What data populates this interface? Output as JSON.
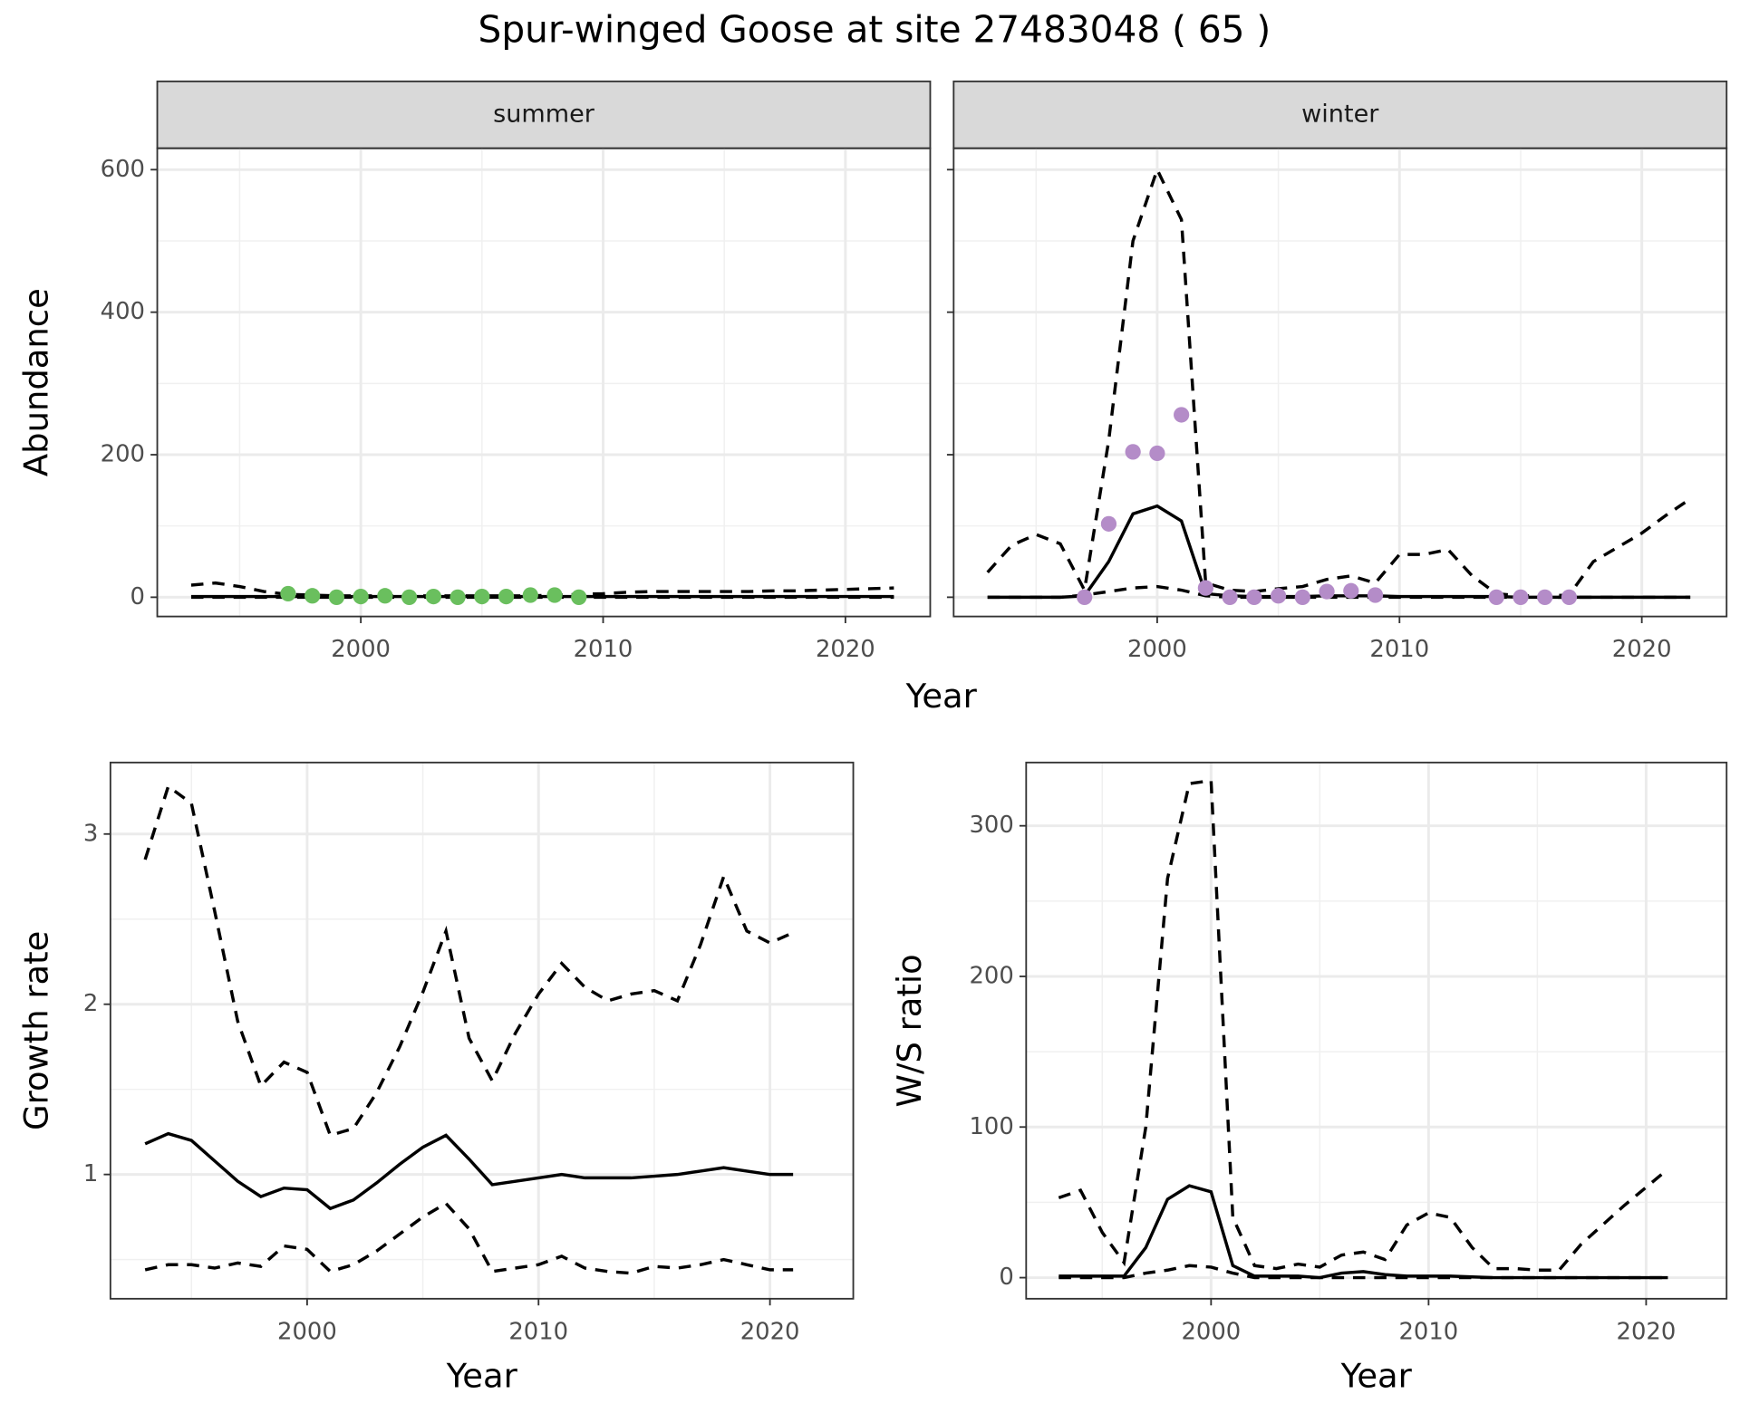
{
  "title": "Spur-winged Goose at site 27483048 ( 65 )",
  "xlabel": "Year",
  "chart_data": [
    {
      "type": "line",
      "facet": "summer",
      "ylabel": "Abundance",
      "show_yticklabels": true,
      "x": [
        1993,
        1994,
        1995,
        1996,
        1997,
        1998,
        1999,
        2000,
        2001,
        2002,
        2003,
        2004,
        2005,
        2006,
        2007,
        2008,
        2009,
        2010,
        2011,
        2012,
        2013,
        2014,
        2015,
        2016,
        2017,
        2018,
        2019,
        2020,
        2021,
        2022
      ],
      "xlim": [
        1991.6,
        2023.5
      ],
      "xticks": [
        2000,
        2010,
        2020
      ],
      "ylim": [
        -27,
        630
      ],
      "yticks": [
        0,
        200,
        400,
        600
      ],
      "grid": true,
      "series": [
        {
          "color": "#000000",
          "dash": "dashed",
          "values": [
            17,
            20,
            15,
            8,
            4,
            3,
            2,
            2,
            2,
            2,
            2,
            2,
            2,
            2,
            2,
            3,
            4,
            5,
            7,
            8,
            8,
            8,
            8,
            8,
            9,
            9,
            10,
            11,
            12,
            13
          ]
        },
        {
          "color": "#000000",
          "dash": "solid",
          "values": [
            1,
            1,
            1,
            1,
            1,
            1,
            1,
            1,
            1,
            1,
            1,
            1,
            1,
            1,
            1,
            1,
            1,
            1,
            1,
            1,
            1,
            1,
            1,
            1,
            1,
            1,
            1,
            1,
            1,
            1
          ]
        },
        {
          "color": "#000000",
          "dash": "dashed",
          "values": [
            0,
            0,
            0,
            0,
            0,
            0,
            0,
            0,
            0,
            0,
            0,
            0,
            0,
            0,
            0,
            0,
            0,
            0,
            0,
            0,
            0,
            0,
            0,
            0,
            0,
            0,
            0,
            0,
            0,
            0
          ]
        },
        {
          "color": "#6abf5e",
          "style": "points",
          "x": [
            1997,
            1998,
            1999,
            2000,
            2001,
            2002,
            2003,
            2004,
            2005,
            2006,
            2007,
            2008,
            2009
          ],
          "values": [
            5,
            2,
            0,
            1,
            2,
            0,
            1,
            0,
            1,
            1,
            3,
            3,
            0
          ]
        }
      ]
    },
    {
      "type": "line",
      "facet": "winter",
      "show_yticklabels": false,
      "x": [
        1993,
        1994,
        1995,
        1996,
        1997,
        1998,
        1999,
        2000,
        2001,
        2002,
        2003,
        2004,
        2005,
        2006,
        2007,
        2008,
        2009,
        2010,
        2011,
        2012,
        2013,
        2014,
        2015,
        2016,
        2017,
        2018,
        2019,
        2020,
        2021,
        2022
      ],
      "xlim": [
        1991.6,
        2023.5
      ],
      "xticks": [
        2000,
        2010,
        2020
      ],
      "ylim": [
        -27,
        630
      ],
      "yticks": [
        0,
        200,
        400,
        600
      ],
      "grid": true,
      "series": [
        {
          "color": "#000000",
          "dash": "dashed",
          "values": [
            35,
            73,
            88,
            75,
            10,
            220,
            500,
            600,
            530,
            20,
            10,
            8,
            12,
            15,
            25,
            30,
            20,
            60,
            60,
            67,
            30,
            5,
            2,
            2,
            3,
            50,
            70,
            90,
            115,
            138
          ]
        },
        {
          "color": "#000000",
          "dash": "solid",
          "values": [
            0,
            0,
            0,
            0,
            2,
            50,
            117,
            128,
            107,
            5,
            2,
            1,
            1,
            1,
            2,
            2,
            2,
            1,
            1,
            1,
            1,
            1,
            0,
            0,
            0,
            0,
            0,
            0,
            0,
            0
          ]
        },
        {
          "color": "#000000",
          "dash": "dashed",
          "values": [
            0,
            0,
            0,
            0,
            3,
            8,
            13,
            15,
            10,
            2,
            0,
            0,
            0,
            0,
            0,
            0,
            0,
            0,
            0,
            0,
            0,
            0,
            0,
            0,
            0,
            0,
            0,
            0,
            0,
            0
          ]
        },
        {
          "color": "#b48cc8",
          "style": "points",
          "x": [
            1997,
            1998,
            1999,
            2000,
            2001,
            2002,
            2003,
            2004,
            2005,
            2006,
            2007,
            2008,
            2009,
            2014,
            2015,
            2016,
            2017
          ],
          "values": [
            0,
            103,
            204,
            202,
            256,
            13,
            0,
            0,
            2,
            0,
            8,
            9,
            3,
            0,
            0,
            0,
            0
          ]
        }
      ]
    },
    {
      "type": "line",
      "ylabel": "Growth rate",
      "xlabel": "Year",
      "show_yticklabels": true,
      "x": [
        1993,
        1994,
        1995,
        1996,
        1997,
        1998,
        1999,
        2000,
        2001,
        2002,
        2003,
        2004,
        2005,
        2006,
        2007,
        2008,
        2009,
        2010,
        2011,
        2012,
        2013,
        2014,
        2015,
        2016,
        2017,
        2018,
        2019,
        2020,
        2021
      ],
      "xlim": [
        1991.5,
        2023.6
      ],
      "xticks": [
        2000,
        2010,
        2020
      ],
      "ylim": [
        0.27,
        3.42
      ],
      "yticks": [
        1,
        2,
        3
      ],
      "grid": true,
      "series": [
        {
          "color": "#000000",
          "dash": "dashed",
          "values": [
            2.85,
            3.28,
            3.18,
            2.55,
            1.9,
            1.52,
            1.66,
            1.6,
            1.23,
            1.27,
            1.48,
            1.75,
            2.07,
            2.43,
            1.8,
            1.55,
            1.83,
            2.06,
            2.24,
            2.1,
            2.02,
            2.06,
            2.08,
            2.02,
            2.35,
            2.75,
            2.43,
            2.36,
            2.42
          ]
        },
        {
          "color": "#000000",
          "dash": "solid",
          "values": [
            1.18,
            1.24,
            1.2,
            1.08,
            0.96,
            0.87,
            0.92,
            0.91,
            0.8,
            0.85,
            0.95,
            1.06,
            1.16,
            1.23,
            1.09,
            0.94,
            0.96,
            0.98,
            1.0,
            0.98,
            0.98,
            0.98,
            0.99,
            1.0,
            1.02,
            1.04,
            1.02,
            1.0,
            1.0
          ]
        },
        {
          "color": "#000000",
          "dash": "dashed",
          "values": [
            0.44,
            0.47,
            0.47,
            0.45,
            0.48,
            0.46,
            0.58,
            0.56,
            0.43,
            0.47,
            0.55,
            0.65,
            0.75,
            0.83,
            0.68,
            0.43,
            0.45,
            0.47,
            0.52,
            0.45,
            0.43,
            0.42,
            0.46,
            0.45,
            0.47,
            0.5,
            0.47,
            0.44,
            0.44
          ]
        }
      ]
    },
    {
      "type": "line",
      "ylabel": "W/S ratio",
      "xlabel": "Year",
      "show_yticklabels": true,
      "x": [
        1993,
        1994,
        1995,
        1996,
        1997,
        1998,
        1999,
        2000,
        2001,
        2002,
        2003,
        2004,
        2005,
        2006,
        2007,
        2008,
        2009,
        2010,
        2011,
        2012,
        2013,
        2014,
        2015,
        2016,
        2017,
        2018,
        2019,
        2020,
        2021
      ],
      "xlim": [
        1991.5,
        2023.7
      ],
      "xticks": [
        2000,
        2010,
        2020
      ],
      "ylim": [
        -14,
        342
      ],
      "yticks": [
        0,
        100,
        200,
        300
      ],
      "grid": true,
      "series": [
        {
          "color": "#000000",
          "dash": "dashed",
          "values": [
            53,
            58,
            30,
            10,
            100,
            265,
            328,
            330,
            40,
            8,
            6,
            9,
            7,
            15,
            17,
            12,
            35,
            43,
            40,
            20,
            6,
            6,
            5,
            5,
            22,
            35,
            48,
            60,
            72
          ]
        },
        {
          "color": "#000000",
          "dash": "solid",
          "values": [
            1,
            1,
            1,
            1,
            20,
            52,
            61,
            57,
            8,
            1,
            1,
            1,
            0,
            3,
            4,
            2,
            1,
            1,
            1,
            0.5,
            0,
            0,
            0,
            0,
            0,
            0,
            0,
            0,
            0
          ]
        },
        {
          "color": "#000000",
          "dash": "dashed",
          "values": [
            0,
            0,
            0,
            0,
            3,
            5,
            8,
            7,
            3,
            0,
            0,
            0,
            0,
            0,
            0,
            0,
            0,
            0,
            0,
            0,
            0,
            0,
            0,
            0,
            0,
            0,
            0,
            0,
            0
          ]
        }
      ]
    }
  ]
}
